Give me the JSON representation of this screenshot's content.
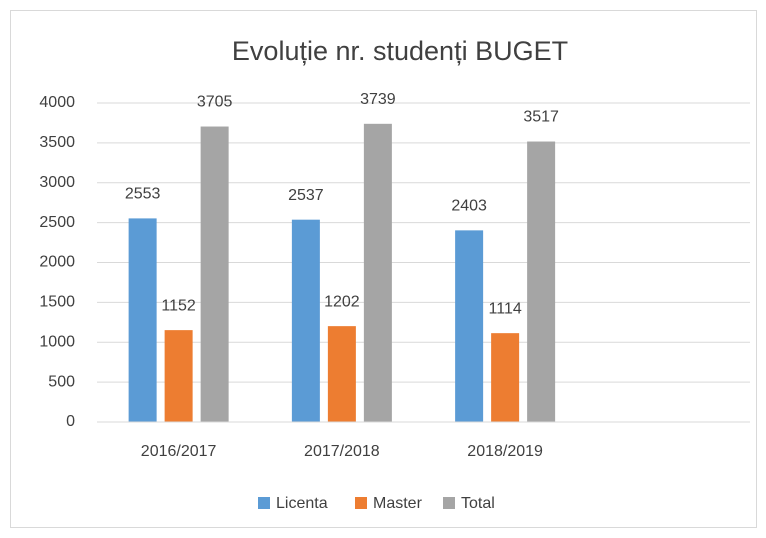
{
  "chart_data": {
    "type": "bar",
    "title": "Evoluție nr. studenți BUGET",
    "categories": [
      "2016/2017",
      "2017/2018",
      "2018/2019",
      null
    ],
    "series": [
      {
        "name": "Licenta",
        "color": "#5b9bd5",
        "values": [
          2553,
          2537,
          2403,
          null
        ]
      },
      {
        "name": "Master",
        "color": "#ed7d31",
        "values": [
          1152,
          1202,
          1114,
          null
        ]
      },
      {
        "name": "Total",
        "color": "#a5a5a5",
        "values": [
          3705,
          3739,
          3517,
          null
        ]
      }
    ],
    "ylim": [
      0,
      4000
    ],
    "yticks": [
      0,
      500,
      1000,
      1500,
      2000,
      2500,
      3000,
      3500,
      4000
    ],
    "grid": true,
    "legend": "bottom",
    "data_labels": true
  }
}
